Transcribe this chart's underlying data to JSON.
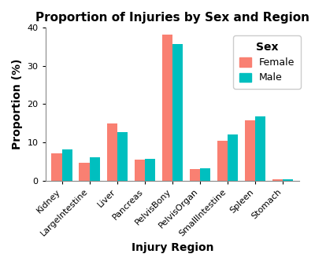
{
  "title": "Proportion of Injuries by Sex and Region",
  "xlabel": "Injury Region",
  "ylabel": "Proportion (%)",
  "categories": [
    "Kidney",
    "LargeIntestine",
    "Liver",
    "Pancreas",
    "PelvisBony",
    "PelvisOrgan",
    "SmallIntestine",
    "Spleen",
    "Stomach"
  ],
  "female_values": [
    7.2,
    4.7,
    15.0,
    5.5,
    38.2,
    2.9,
    10.5,
    15.7,
    0.4
  ],
  "male_values": [
    8.1,
    6.0,
    12.7,
    5.7,
    35.8,
    3.1,
    12.0,
    16.7,
    0.4
  ],
  "female_color": "#F98072",
  "male_color": "#00BFBF",
  "ylim": [
    0,
    40
  ],
  "yticks": [
    0,
    10,
    20,
    30,
    40
  ],
  "legend_title": "Sex",
  "legend_labels": [
    "Female",
    "Male"
  ],
  "bg_color": "#FFFFFF",
  "panel_bg": "#FFFFFF",
  "bar_width": 0.38,
  "title_fontsize": 11,
  "axis_label_fontsize": 10,
  "tick_fontsize": 8,
  "legend_fontsize": 9,
  "legend_title_fontsize": 10
}
